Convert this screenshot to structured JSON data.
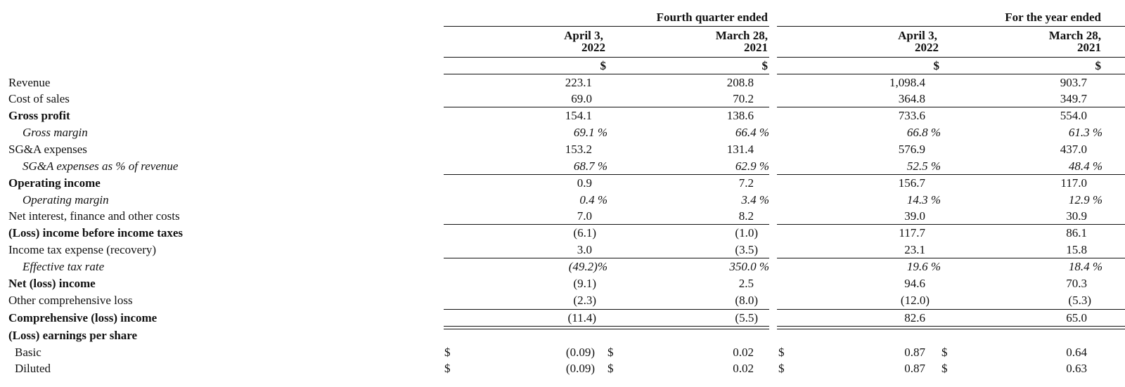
{
  "headers": {
    "group_quarter": "Fourth quarter ended",
    "group_year": "For the year ended",
    "col1": [
      "April 3,",
      "2022"
    ],
    "col2": [
      "March 28,",
      "2021"
    ],
    "col3": [
      "April 3,",
      "2022"
    ],
    "col4": [
      "March 28,",
      "2021"
    ],
    "currency": "$"
  },
  "rows": [
    {
      "label": "Revenue",
      "v": [
        "223.1",
        "208.8",
        "1,098.4",
        "903.7"
      ]
    },
    {
      "label": "Cost of sales",
      "v": [
        "69.0",
        "70.2",
        "364.8",
        "349.7"
      ]
    },
    {
      "label": "Gross profit",
      "v": [
        "154.1",
        "138.6",
        "733.6",
        "554.0"
      ]
    },
    {
      "label": "Gross margin",
      "v": [
        "69.1 %",
        "66.4 %",
        "66.8 %",
        "61.3 %"
      ]
    },
    {
      "label": "SG&A expenses",
      "v": [
        "153.2",
        "131.4",
        "576.9",
        "437.0"
      ]
    },
    {
      "label": "SG&A expenses as % of revenue",
      "v": [
        "68.7 %",
        "62.9 %",
        "52.5 %",
        "48.4 %"
      ]
    },
    {
      "label": "Operating income",
      "v": [
        "0.9",
        "7.2",
        "156.7",
        "117.0"
      ]
    },
    {
      "label": "Operating margin",
      "v": [
        "0.4 %",
        "3.4 %",
        "14.3 %",
        "12.9 %"
      ]
    },
    {
      "label": "Net interest, finance and other costs",
      "v": [
        "7.0",
        "8.2",
        "39.0",
        "30.9"
      ]
    },
    {
      "label": "(Loss) income before income taxes",
      "v": [
        "(6.1)",
        "(1.0)",
        "117.7",
        "86.1"
      ]
    },
    {
      "label": "Income tax expense (recovery)",
      "v": [
        "3.0",
        "(3.5)",
        "23.1",
        "15.8"
      ]
    },
    {
      "label": "Effective tax rate",
      "v": [
        "(49.2)%",
        "350.0 %",
        "19.6 %",
        "18.4 %"
      ]
    },
    {
      "label": "Net (loss) income",
      "v": [
        "(9.1)",
        "2.5",
        "94.6",
        "70.3"
      ]
    },
    {
      "label": "Other comprehensive loss",
      "v": [
        "(2.3)",
        "(8.0)",
        "(12.0)",
        "(5.3)"
      ]
    },
    {
      "label": "Comprehensive (loss) income",
      "v": [
        "(11.4)",
        "(5.5)",
        "82.6",
        "65.0"
      ]
    },
    {
      "label": "(Loss) earnings per share",
      "v": [
        "",
        "",
        "",
        ""
      ]
    },
    {
      "label": "Basic",
      "v": [
        "(0.09)",
        "0.02",
        "0.87",
        "0.64"
      ]
    },
    {
      "label": "Diluted",
      "v": [
        "(0.09)",
        "0.02",
        "0.87",
        "0.63"
      ]
    }
  ]
}
